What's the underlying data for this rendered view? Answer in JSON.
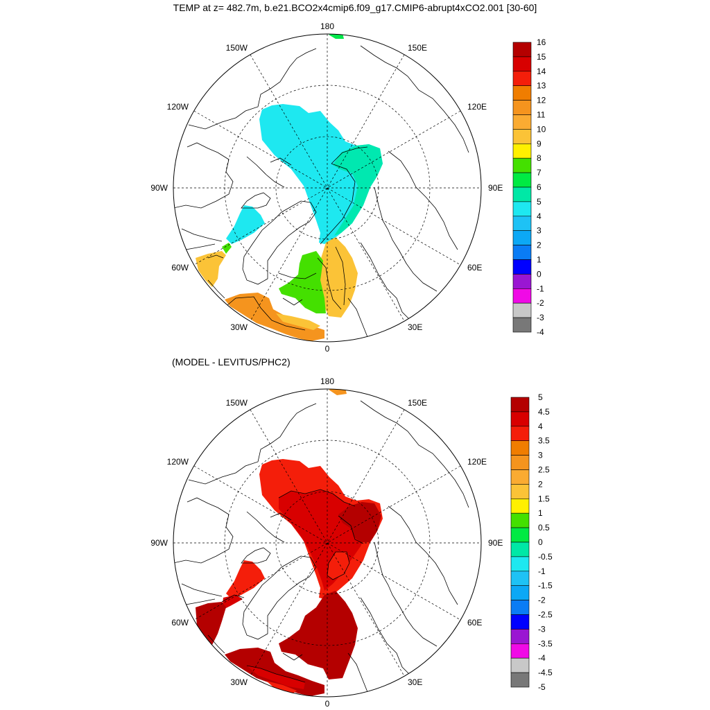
{
  "title": "TEMP at z= 482.7m, b.e21.BCO2x4cmip6.f09_g17.CMIP6-abrupt4xCO2.001 [30-60]",
  "subtitle": "(MODEL - LEVITUS/PHC2)",
  "lon_labels": {
    "top": "180",
    "bottom": "0",
    "left": "90W",
    "right": "90E",
    "upper_left_1": "150W",
    "upper_left_2": "120W",
    "upper_right_1": "150E",
    "upper_right_2": "120E",
    "lower_left": "60W",
    "lower_left_2": "30W",
    "lower_right": "60E",
    "lower_right_2": "30E"
  },
  "colorbar_top": {
    "labels": [
      "16",
      "15",
      "14",
      "13",
      "12",
      "11",
      "10",
      "9",
      "8",
      "7",
      "6",
      "5",
      "4",
      "3",
      "2",
      "1",
      "0",
      "-1",
      "-2",
      "-3",
      "-4"
    ],
    "colors": [
      "#b40000",
      "#d80000",
      "#f41e0a",
      "#f07d00",
      "#f5941e",
      "#faab32",
      "#fbc337",
      "#fff000",
      "#44e000",
      "#00ea43",
      "#00e8a6",
      "#1ee8f0",
      "#1ec2f5",
      "#0ca8f5",
      "#0a7cf5",
      "#0000ff",
      "#9a16d2",
      "#f00ae6",
      "#c8c8c8",
      "#787878"
    ]
  },
  "colorbar_bottom": {
    "labels": [
      "5",
      "4.5",
      "4",
      "3.5",
      "3",
      "2.5",
      "2",
      "1.5",
      "1",
      "0.5",
      "0",
      "-0.5",
      "-1",
      "-1.5",
      "-2",
      "-2.5",
      "-3",
      "-3.5",
      "-4",
      "-4.5",
      "-5"
    ],
    "colors": [
      "#b40000",
      "#d80000",
      "#f41e0a",
      "#f07d00",
      "#f5941e",
      "#faab32",
      "#fbc337",
      "#fff000",
      "#44e000",
      "#00ea43",
      "#00e8a6",
      "#1ee8f0",
      "#1ec2f5",
      "#0ca8f5",
      "#0a7cf5",
      "#0000ff",
      "#9a16d2",
      "#f00ae6",
      "#c8c8c8",
      "#787878"
    ]
  }
}
